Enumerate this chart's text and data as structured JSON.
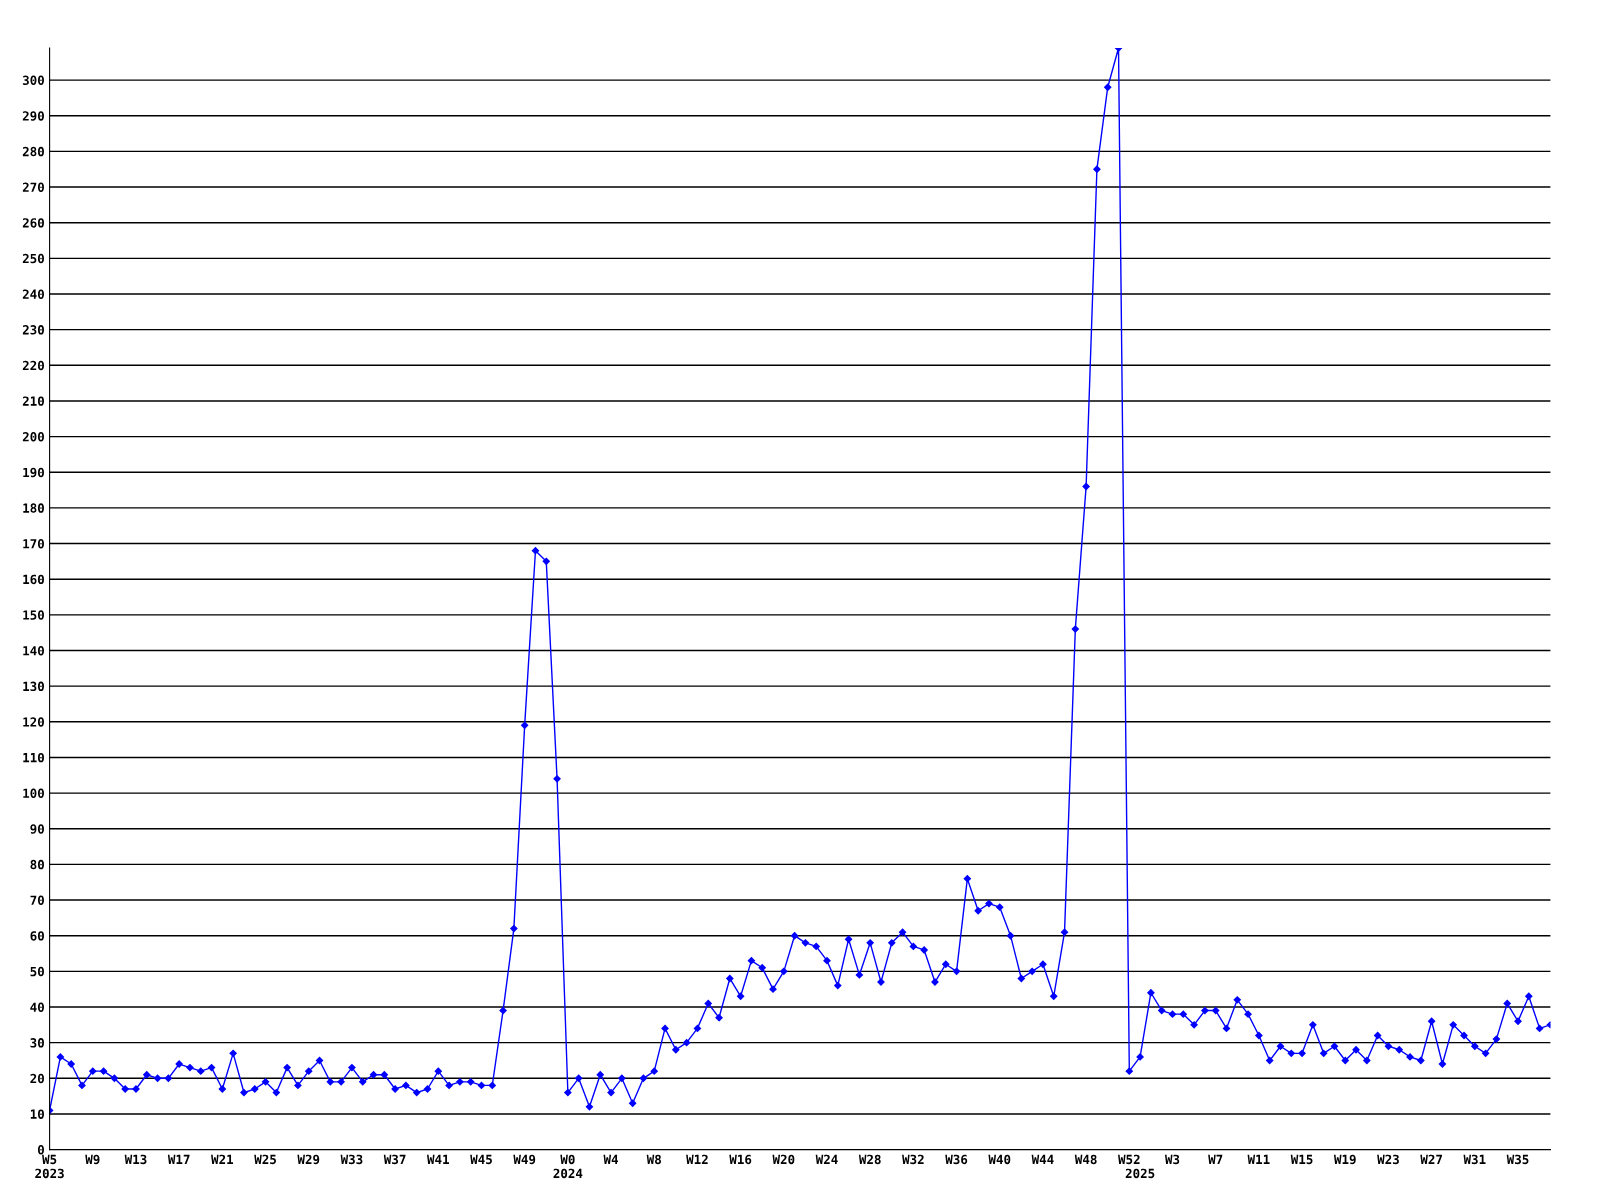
{
  "chart_data": {
    "type": "line",
    "categories": [
      "W5\n2023",
      null,
      null,
      null,
      "W9",
      null,
      null,
      null,
      "W13",
      null,
      null,
      null,
      "W17",
      null,
      null,
      null,
      "W21",
      null,
      null,
      null,
      "W25",
      null,
      null,
      null,
      "W29",
      null,
      null,
      null,
      "W33",
      null,
      null,
      null,
      "W37",
      null,
      null,
      null,
      "W41",
      null,
      null,
      null,
      "W45",
      null,
      null,
      null,
      "W49",
      null,
      null,
      null,
      "W0\n2024",
      null,
      null,
      null,
      "W4",
      null,
      null,
      null,
      "W8",
      null,
      null,
      null,
      "W12",
      null,
      null,
      null,
      "W16",
      null,
      null,
      null,
      "W20",
      null,
      null,
      null,
      "W24",
      null,
      null,
      null,
      "W28",
      null,
      null,
      null,
      "W32",
      null,
      null,
      null,
      "W36",
      null,
      null,
      null,
      "W40",
      null,
      null,
      null,
      "W44",
      null,
      null,
      null,
      "W48",
      null,
      null,
      null,
      "W52",
      "\n2025",
      null,
      null,
      "W3",
      null,
      null,
      null,
      "W7",
      null,
      null,
      null,
      "W11",
      null,
      null,
      null,
      "W15",
      null,
      null,
      null,
      "W19",
      null,
      null,
      null,
      "W23",
      null,
      null,
      null,
      "W27",
      null,
      null,
      null,
      "W31",
      null,
      null,
      null,
      "W35",
      null,
      null,
      null
    ],
    "series": [
      {
        "color": "#0000ff",
        "values": [
          11,
          26,
          24,
          18,
          22,
          22,
          20,
          17,
          17,
          21,
          20,
          20,
          24,
          23,
          22,
          23,
          17,
          27,
          16,
          17,
          19,
          16,
          23,
          18,
          22,
          25,
          19,
          19,
          23,
          19,
          21,
          21,
          17,
          18,
          16,
          17,
          22,
          18,
          19,
          19,
          18,
          18,
          39,
          62,
          119,
          168,
          165,
          104,
          16,
          20,
          12,
          21,
          16,
          20,
          13,
          20,
          22,
          34,
          28,
          30,
          34,
          41,
          37,
          48,
          43,
          53,
          51,
          45,
          50,
          60,
          58,
          57,
          53,
          46,
          59,
          49,
          58,
          47,
          58,
          61,
          57,
          56,
          47,
          52,
          50,
          76,
          67,
          69,
          68,
          60,
          48,
          50,
          52,
          43,
          61,
          146,
          186,
          275,
          298,
          309,
          22,
          26,
          44,
          39,
          38,
          38,
          35,
          39,
          39,
          34,
          42,
          38,
          32,
          25,
          29,
          27,
          27,
          35,
          27,
          29,
          25,
          28,
          25,
          32,
          29,
          28,
          26,
          25,
          36,
          24,
          35,
          32,
          29,
          27,
          31,
          41,
          36,
          43,
          34,
          35
        ]
      }
    ],
    "ylim": [
      0,
      309
    ],
    "yticks": [
      0,
      10,
      20,
      30,
      40,
      50,
      60,
      70,
      80,
      90,
      100,
      110,
      120,
      130,
      140,
      150,
      160,
      170,
      180,
      190,
      200,
      210,
      220,
      230,
      240,
      250,
      260,
      270,
      280,
      290,
      300
    ],
    "grid": "y",
    "marker": "diamond",
    "line_style": "solid"
  }
}
